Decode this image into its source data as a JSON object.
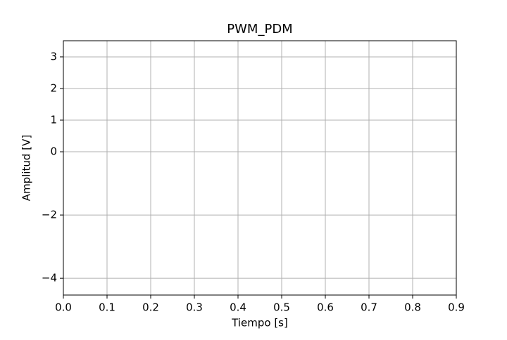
{
  "chart_data": {
    "type": "line",
    "title": "PWM_PDM",
    "xlabel": "Tiempo [s]",
    "ylabel": "Amplitud [V]",
    "xlim": [
      0,
      0.9
    ],
    "ylim": [
      -4.53,
      3.51
    ],
    "xticks": [
      {
        "value": 0,
        "label": "0.0"
      },
      0.1,
      0.2,
      0.3,
      0.4,
      0.5,
      0.6,
      0.7,
      0.8,
      0.9
    ],
    "yticks": [
      {
        "value": -4,
        "label": "−4"
      },
      {
        "value": -2,
        "label": "−2"
      },
      0,
      1,
      2,
      3
    ],
    "grid": true,
    "series": []
  }
}
